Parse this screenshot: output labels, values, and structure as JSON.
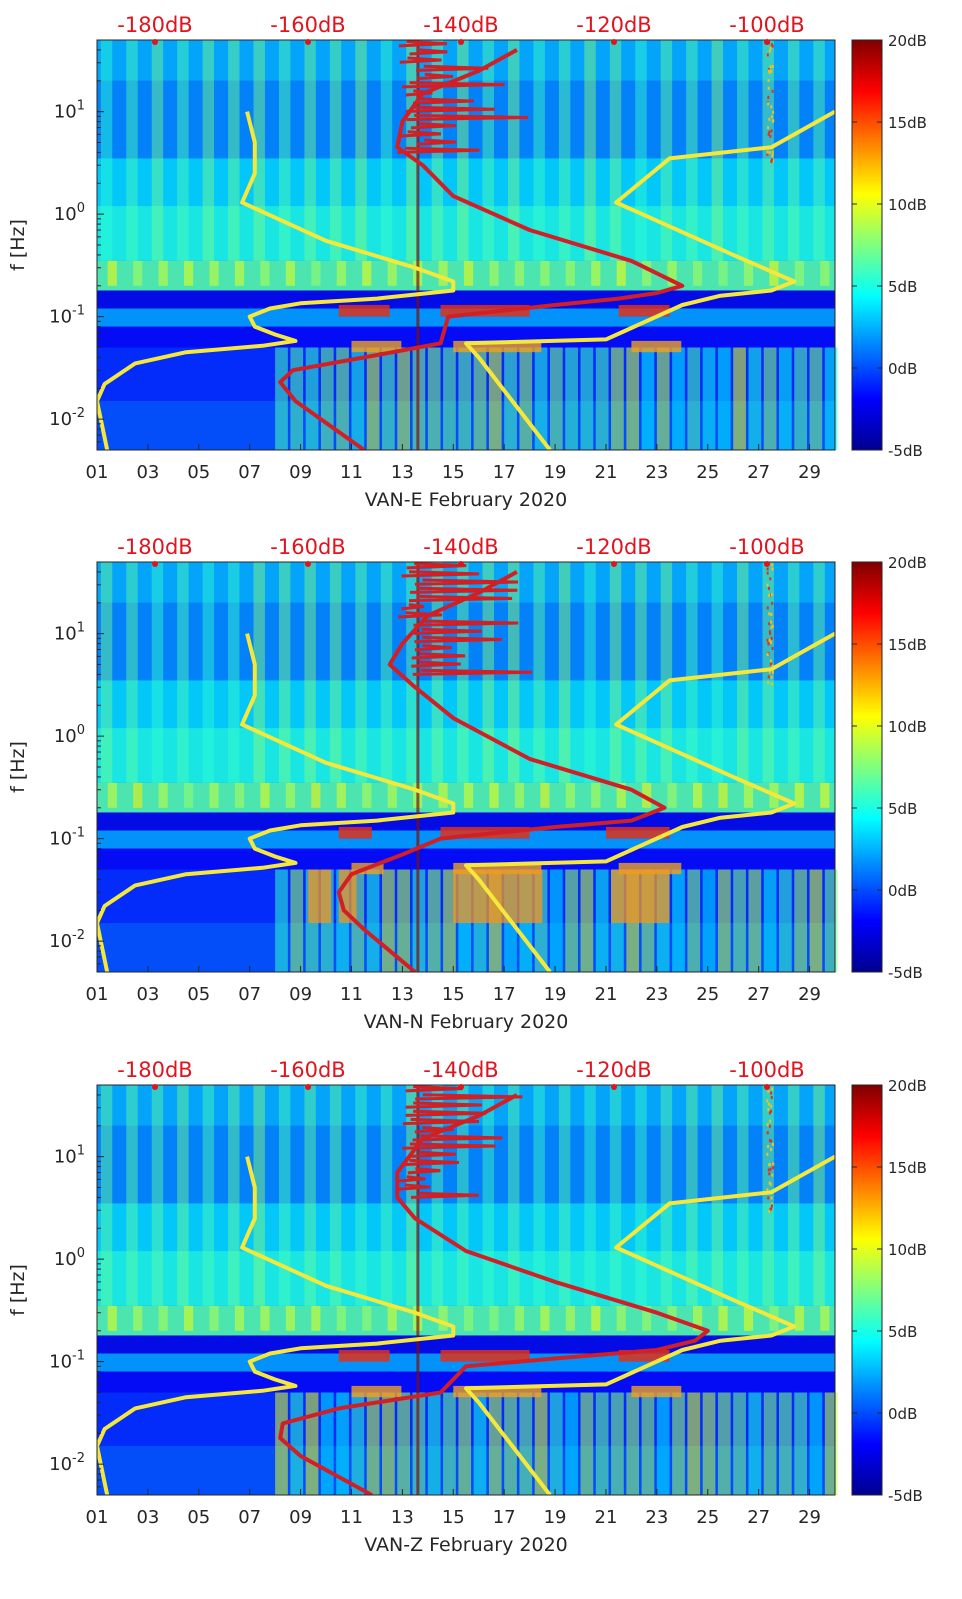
{
  "chart_data": [
    {
      "type": "heatmap",
      "station": "VAN-E",
      "xlabel": "VAN-E February 2020",
      "ylabel": "f [Hz]",
      "x_ticks": [
        "01",
        "03",
        "05",
        "07",
        "09",
        "11",
        "13",
        "15",
        "17",
        "19",
        "21",
        "23",
        "25",
        "27",
        "29"
      ],
      "y_ticks": [
        "10^-2",
        "10^-1",
        "10^0",
        "10^1"
      ],
      "xlim": [
        1,
        30
      ],
      "ylim_hz": [
        0.005,
        50
      ],
      "top_axis_labels": [
        "-180dB",
        "-160dB",
        "-140dB",
        "-120dB",
        "-100dB"
      ],
      "colorbar": {
        "ticks": [
          "-5dB",
          "0dB",
          "5dB",
          "10dB",
          "15dB",
          "20dB"
        ],
        "range_db": [
          -5,
          20
        ]
      },
      "series": [
        {
          "name": "yellow",
          "color": "#f5e83a",
          "points": [
            [
              1.4,
              0.005
            ],
            [
              1.0,
              0.015
            ],
            [
              1.3,
              0.022
            ],
            [
              2.5,
              0.035
            ],
            [
              4.5,
              0.045
            ],
            [
              7.5,
              0.052
            ],
            [
              8.8,
              0.058
            ],
            [
              8.0,
              0.067
            ],
            [
              7.2,
              0.08
            ],
            [
              7.0,
              0.1
            ],
            [
              7.8,
              0.12
            ],
            [
              9.0,
              0.135
            ],
            [
              12.0,
              0.15
            ],
            [
              15.0,
              0.18
            ],
            [
              15.0,
              0.22
            ],
            [
              13.5,
              0.3
            ],
            [
              10.0,
              0.55
            ],
            [
              6.7,
              1.3
            ],
            [
              7.2,
              2.5
            ],
            [
              7.2,
              5.0
            ],
            [
              6.9,
              10.0
            ]
          ]
        },
        {
          "name": "yellow-right",
          "color": "#f5e83a",
          "points": [
            [
              18.8,
              0.005
            ],
            [
              16.0,
              0.04
            ],
            [
              15.5,
              0.055
            ],
            [
              21.0,
              0.06
            ],
            [
              24.0,
              0.13
            ],
            [
              25.5,
              0.16
            ],
            [
              27.5,
              0.18
            ],
            [
              28.4,
              0.22
            ],
            [
              26.0,
              0.4
            ],
            [
              21.4,
              1.3
            ],
            [
              23.5,
              3.5
            ],
            [
              27.5,
              4.5
            ],
            [
              30.0,
              10.0
            ]
          ]
        },
        {
          "name": "red",
          "color": "#d21f26",
          "points": [
            [
              11.5,
              0.005
            ],
            [
              8.8,
              0.015
            ],
            [
              8.2,
              0.023
            ],
            [
              8.7,
              0.03
            ],
            [
              11.5,
              0.04
            ],
            [
              14.5,
              0.055
            ],
            [
              14.8,
              0.1
            ],
            [
              19.0,
              0.13
            ],
            [
              21.5,
              0.15
            ],
            [
              23.0,
              0.17
            ],
            [
              24.0,
              0.2
            ],
            [
              22.0,
              0.35
            ],
            [
              18.0,
              0.7
            ],
            [
              15.0,
              1.5
            ],
            [
              13.8,
              3.0
            ],
            [
              12.8,
              4.5
            ],
            [
              13.0,
              8.0
            ],
            [
              13.8,
              15.0
            ],
            [
              16.0,
              25.0
            ],
            [
              17.5,
              40.0
            ]
          ]
        }
      ]
    },
    {
      "type": "heatmap",
      "station": "VAN-N",
      "xlabel": "VAN-N February 2020",
      "ylabel": "f [Hz]",
      "x_ticks": [
        "01",
        "03",
        "05",
        "07",
        "09",
        "11",
        "13",
        "15",
        "17",
        "19",
        "21",
        "23",
        "25",
        "27",
        "29"
      ],
      "y_ticks": [
        "10^-2",
        "10^-1",
        "10^0",
        "10^1"
      ],
      "xlim": [
        1,
        30
      ],
      "ylim_hz": [
        0.005,
        50
      ],
      "top_axis_labels": [
        "-180dB",
        "-160dB",
        "-140dB",
        "-120dB",
        "-100dB"
      ],
      "colorbar": {
        "ticks": [
          "-5dB",
          "0dB",
          "5dB",
          "10dB",
          "15dB",
          "20dB"
        ],
        "range_db": [
          -5,
          20
        ]
      },
      "series": [
        {
          "name": "yellow",
          "color": "#f5e83a",
          "points": [
            [
              1.4,
              0.005
            ],
            [
              1.0,
              0.015
            ],
            [
              1.3,
              0.022
            ],
            [
              2.5,
              0.035
            ],
            [
              4.5,
              0.045
            ],
            [
              7.5,
              0.052
            ],
            [
              8.8,
              0.058
            ],
            [
              8.0,
              0.067
            ],
            [
              7.2,
              0.08
            ],
            [
              7.0,
              0.1
            ],
            [
              7.8,
              0.12
            ],
            [
              9.0,
              0.135
            ],
            [
              12.0,
              0.15
            ],
            [
              15.0,
              0.18
            ],
            [
              15.0,
              0.22
            ],
            [
              13.5,
              0.3
            ],
            [
              10.0,
              0.55
            ],
            [
              6.7,
              1.3
            ],
            [
              7.2,
              2.5
            ],
            [
              7.2,
              5.0
            ],
            [
              6.9,
              10.0
            ]
          ]
        },
        {
          "name": "yellow-right",
          "color": "#f5e83a",
          "points": [
            [
              18.8,
              0.005
            ],
            [
              16.0,
              0.04
            ],
            [
              15.5,
              0.055
            ],
            [
              21.0,
              0.06
            ],
            [
              24.0,
              0.13
            ],
            [
              25.5,
              0.16
            ],
            [
              27.5,
              0.18
            ],
            [
              28.4,
              0.22
            ],
            [
              26.0,
              0.4
            ],
            [
              21.4,
              1.3
            ],
            [
              23.5,
              3.5
            ],
            [
              27.5,
              4.5
            ],
            [
              30.0,
              10.0
            ]
          ]
        },
        {
          "name": "red",
          "color": "#d21f26",
          "points": [
            [
              13.5,
              0.005
            ],
            [
              11.5,
              0.013
            ],
            [
              10.7,
              0.02
            ],
            [
              10.5,
              0.03
            ],
            [
              11.0,
              0.045
            ],
            [
              13.0,
              0.07
            ],
            [
              14.5,
              0.1
            ],
            [
              19.0,
              0.13
            ],
            [
              22.0,
              0.15
            ],
            [
              23.3,
              0.2
            ],
            [
              22.0,
              0.3
            ],
            [
              18.0,
              0.6
            ],
            [
              15.0,
              1.5
            ],
            [
              13.5,
              3.0
            ],
            [
              12.5,
              5.0
            ],
            [
              13.0,
              8.0
            ],
            [
              14.0,
              15.0
            ],
            [
              16.0,
              25.0
            ],
            [
              17.5,
              40.0
            ]
          ]
        }
      ]
    },
    {
      "type": "heatmap",
      "station": "VAN-Z",
      "xlabel": "VAN-Z February 2020",
      "ylabel": "f [Hz]",
      "x_ticks": [
        "01",
        "03",
        "05",
        "07",
        "09",
        "11",
        "13",
        "15",
        "17",
        "19",
        "21",
        "23",
        "25",
        "27",
        "29"
      ],
      "y_ticks": [
        "10^-2",
        "10^-1",
        "10^0",
        "10^1"
      ],
      "xlim": [
        1,
        30
      ],
      "ylim_hz": [
        0.005,
        50
      ],
      "top_axis_labels": [
        "-180dB",
        "-160dB",
        "-140dB",
        "-120dB",
        "-100dB"
      ],
      "colorbar": {
        "ticks": [
          "-5dB",
          "0dB",
          "5dB",
          "10dB",
          "15dB",
          "20dB"
        ],
        "range_db": [
          -5,
          20
        ]
      },
      "series": [
        {
          "name": "yellow",
          "color": "#f5e83a",
          "points": [
            [
              1.4,
              0.005
            ],
            [
              1.0,
              0.015
            ],
            [
              1.3,
              0.022
            ],
            [
              2.5,
              0.035
            ],
            [
              4.5,
              0.045
            ],
            [
              7.5,
              0.052
            ],
            [
              8.8,
              0.058
            ],
            [
              8.0,
              0.067
            ],
            [
              7.2,
              0.08
            ],
            [
              7.0,
              0.1
            ],
            [
              7.8,
              0.12
            ],
            [
              9.0,
              0.135
            ],
            [
              12.0,
              0.15
            ],
            [
              15.0,
              0.18
            ],
            [
              15.0,
              0.22
            ],
            [
              13.5,
              0.3
            ],
            [
              10.0,
              0.55
            ],
            [
              6.7,
              1.3
            ],
            [
              7.2,
              2.5
            ],
            [
              7.2,
              5.0
            ],
            [
              6.9,
              10.0
            ]
          ]
        },
        {
          "name": "yellow-right",
          "color": "#f5e83a",
          "points": [
            [
              18.8,
              0.005
            ],
            [
              16.0,
              0.04
            ],
            [
              15.5,
              0.055
            ],
            [
              21.0,
              0.06
            ],
            [
              24.0,
              0.13
            ],
            [
              25.5,
              0.16
            ],
            [
              27.5,
              0.18
            ],
            [
              28.4,
              0.22
            ],
            [
              26.0,
              0.4
            ],
            [
              21.4,
              1.3
            ],
            [
              23.5,
              3.5
            ],
            [
              27.5,
              4.5
            ],
            [
              30.0,
              10.0
            ]
          ]
        },
        {
          "name": "red",
          "color": "#d21f26",
          "points": [
            [
              11.8,
              0.005
            ],
            [
              9.0,
              0.012
            ],
            [
              8.2,
              0.018
            ],
            [
              8.3,
              0.025
            ],
            [
              10.5,
              0.035
            ],
            [
              14.5,
              0.05
            ],
            [
              15.5,
              0.09
            ],
            [
              19.5,
              0.11
            ],
            [
              23.0,
              0.13
            ],
            [
              24.5,
              0.16
            ],
            [
              25.0,
              0.2
            ],
            [
              23.0,
              0.3
            ],
            [
              19.0,
              0.6
            ],
            [
              15.5,
              1.2
            ],
            [
              13.5,
              2.5
            ],
            [
              12.8,
              4.0
            ],
            [
              12.8,
              7.0
            ],
            [
              13.8,
              15.0
            ],
            [
              16.0,
              25.0
            ],
            [
              17.5,
              40.0
            ]
          ]
        }
      ]
    }
  ]
}
